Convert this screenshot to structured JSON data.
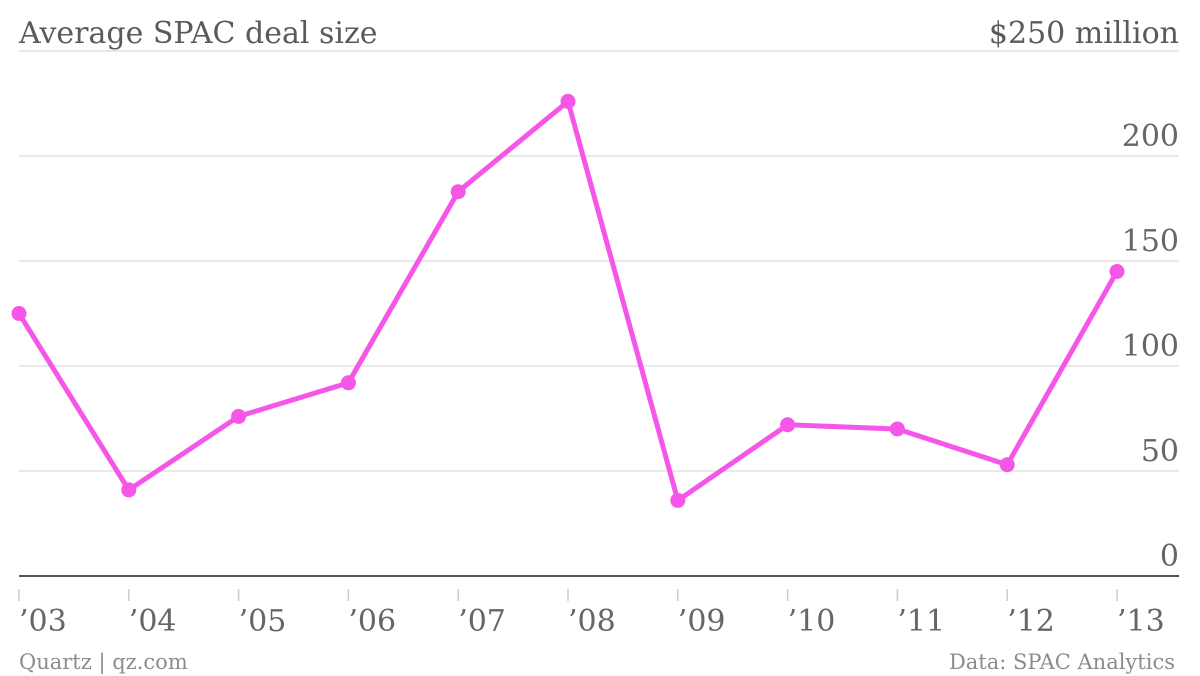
{
  "header": {
    "title": "Average SPAC deal size",
    "unit_label": "$250 million"
  },
  "footer": {
    "source_left": "Quartz | qz.com",
    "source_right": "Data: SPAC Analytics"
  },
  "chart_data": {
    "type": "line",
    "title": "Average SPAC deal size",
    "categories": [
      "’03",
      "’04",
      "’05",
      "’06",
      "’07",
      "’08",
      "’09",
      "’10",
      "’11",
      "’12",
      "’13"
    ],
    "series": [
      {
        "values": [
          125,
          41,
          76,
          92,
          183,
          226,
          36,
          72,
          70,
          53,
          145
        ],
        "color": "#f556e8"
      }
    ],
    "y_ticks": [
      "0",
      "50",
      "100",
      "150",
      "200"
    ],
    "y_top_label": "$250 million",
    "ylim": [
      0,
      250
    ],
    "grid": true,
    "y_axis_side": "right"
  }
}
